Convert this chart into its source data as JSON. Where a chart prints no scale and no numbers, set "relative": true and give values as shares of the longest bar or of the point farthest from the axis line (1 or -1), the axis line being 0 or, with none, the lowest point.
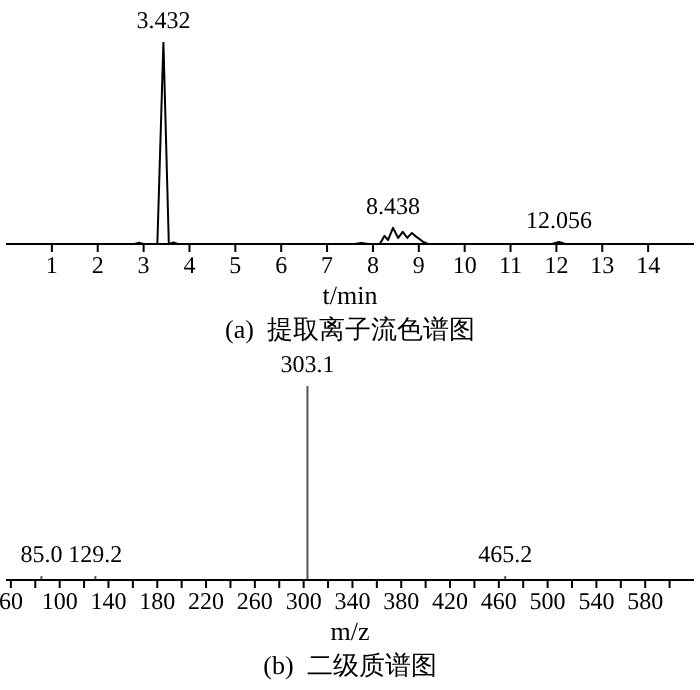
{
  "chart_data": [
    {
      "type": "line",
      "title": "(a)  提取离子流色谱图",
      "xlabel": "t/min",
      "relative": true,
      "xlim": [
        0,
        15
      ],
      "xticks": [
        1,
        2,
        3,
        4,
        5,
        6,
        7,
        8,
        9,
        10,
        11,
        12,
        13,
        14
      ],
      "marker": "none",
      "line_style": "solid",
      "grid": false,
      "legend": false,
      "x": [
        0,
        2.8,
        2.9,
        3.0,
        3.3,
        3.432,
        3.55,
        3.65,
        3.75,
        7.6,
        7.75,
        7.9,
        8.15,
        8.25,
        8.33,
        8.438,
        8.55,
        8.65,
        8.75,
        8.85,
        8.95,
        9.1,
        9.2,
        11.9,
        12.056,
        12.2,
        15
      ],
      "series": [
        {
          "color": "#000000",
          "values": [
            0,
            0,
            0.006,
            0,
            0,
            1,
            0,
            0.008,
            0,
            0,
            0.005,
            0,
            0,
            0.04,
            0.02,
            0.08,
            0.03,
            0.06,
            0.03,
            0.055,
            0.035,
            0.01,
            0,
            0,
            0.01,
            0,
            0
          ]
        }
      ],
      "annotations": [
        {
          "text": "3.432",
          "x": 3.432,
          "y": 1
        },
        {
          "text": "8.438",
          "x": 8.438,
          "y": 0.08
        },
        {
          "text": "12.056",
          "x": 12.056,
          "y": 0.01
        }
      ]
    },
    {
      "type": "bar",
      "title": "(b)  二级质谱图",
      "xlabel": "m/z",
      "relative": true,
      "xlim": [
        56,
        620
      ],
      "xticks": [
        60,
        {
          "value": 80,
          "label": null
        },
        100,
        {
          "value": 120,
          "label": null
        },
        140,
        {
          "value": 160,
          "label": null
        },
        180,
        {
          "value": 200,
          "label": null
        },
        220,
        {
          "value": 240,
          "label": null
        },
        260,
        {
          "value": 280,
          "label": null
        },
        300,
        {
          "value": 320,
          "label": null
        },
        340,
        {
          "value": 360,
          "label": null
        },
        380,
        {
          "value": 400,
          "label": null
        },
        420,
        {
          "value": 440,
          "label": null
        },
        460,
        {
          "value": 480,
          "label": null
        },
        500,
        {
          "value": 520,
          "label": null
        },
        540,
        {
          "value": 560,
          "label": null
        },
        580,
        {
          "value": 600,
          "label": null
        }
      ],
      "grid": false,
      "legend": false,
      "x": [
        85.0,
        129.2,
        303.1,
        465.2
      ],
      "series": [
        {
          "color": "#555555",
          "values": [
            0.02,
            0.02,
            1,
            0.02
          ]
        }
      ],
      "annotations": [
        {
          "text": "85.0",
          "x": 85.0,
          "y": 0.02
        },
        {
          "text": "129.2",
          "x": 129.2,
          "y": 0.02
        },
        {
          "text": "303.1",
          "x": 303.1,
          "y": 1
        },
        {
          "text": "465.2",
          "x": 465.2,
          "y": 0.02
        }
      ]
    }
  ]
}
